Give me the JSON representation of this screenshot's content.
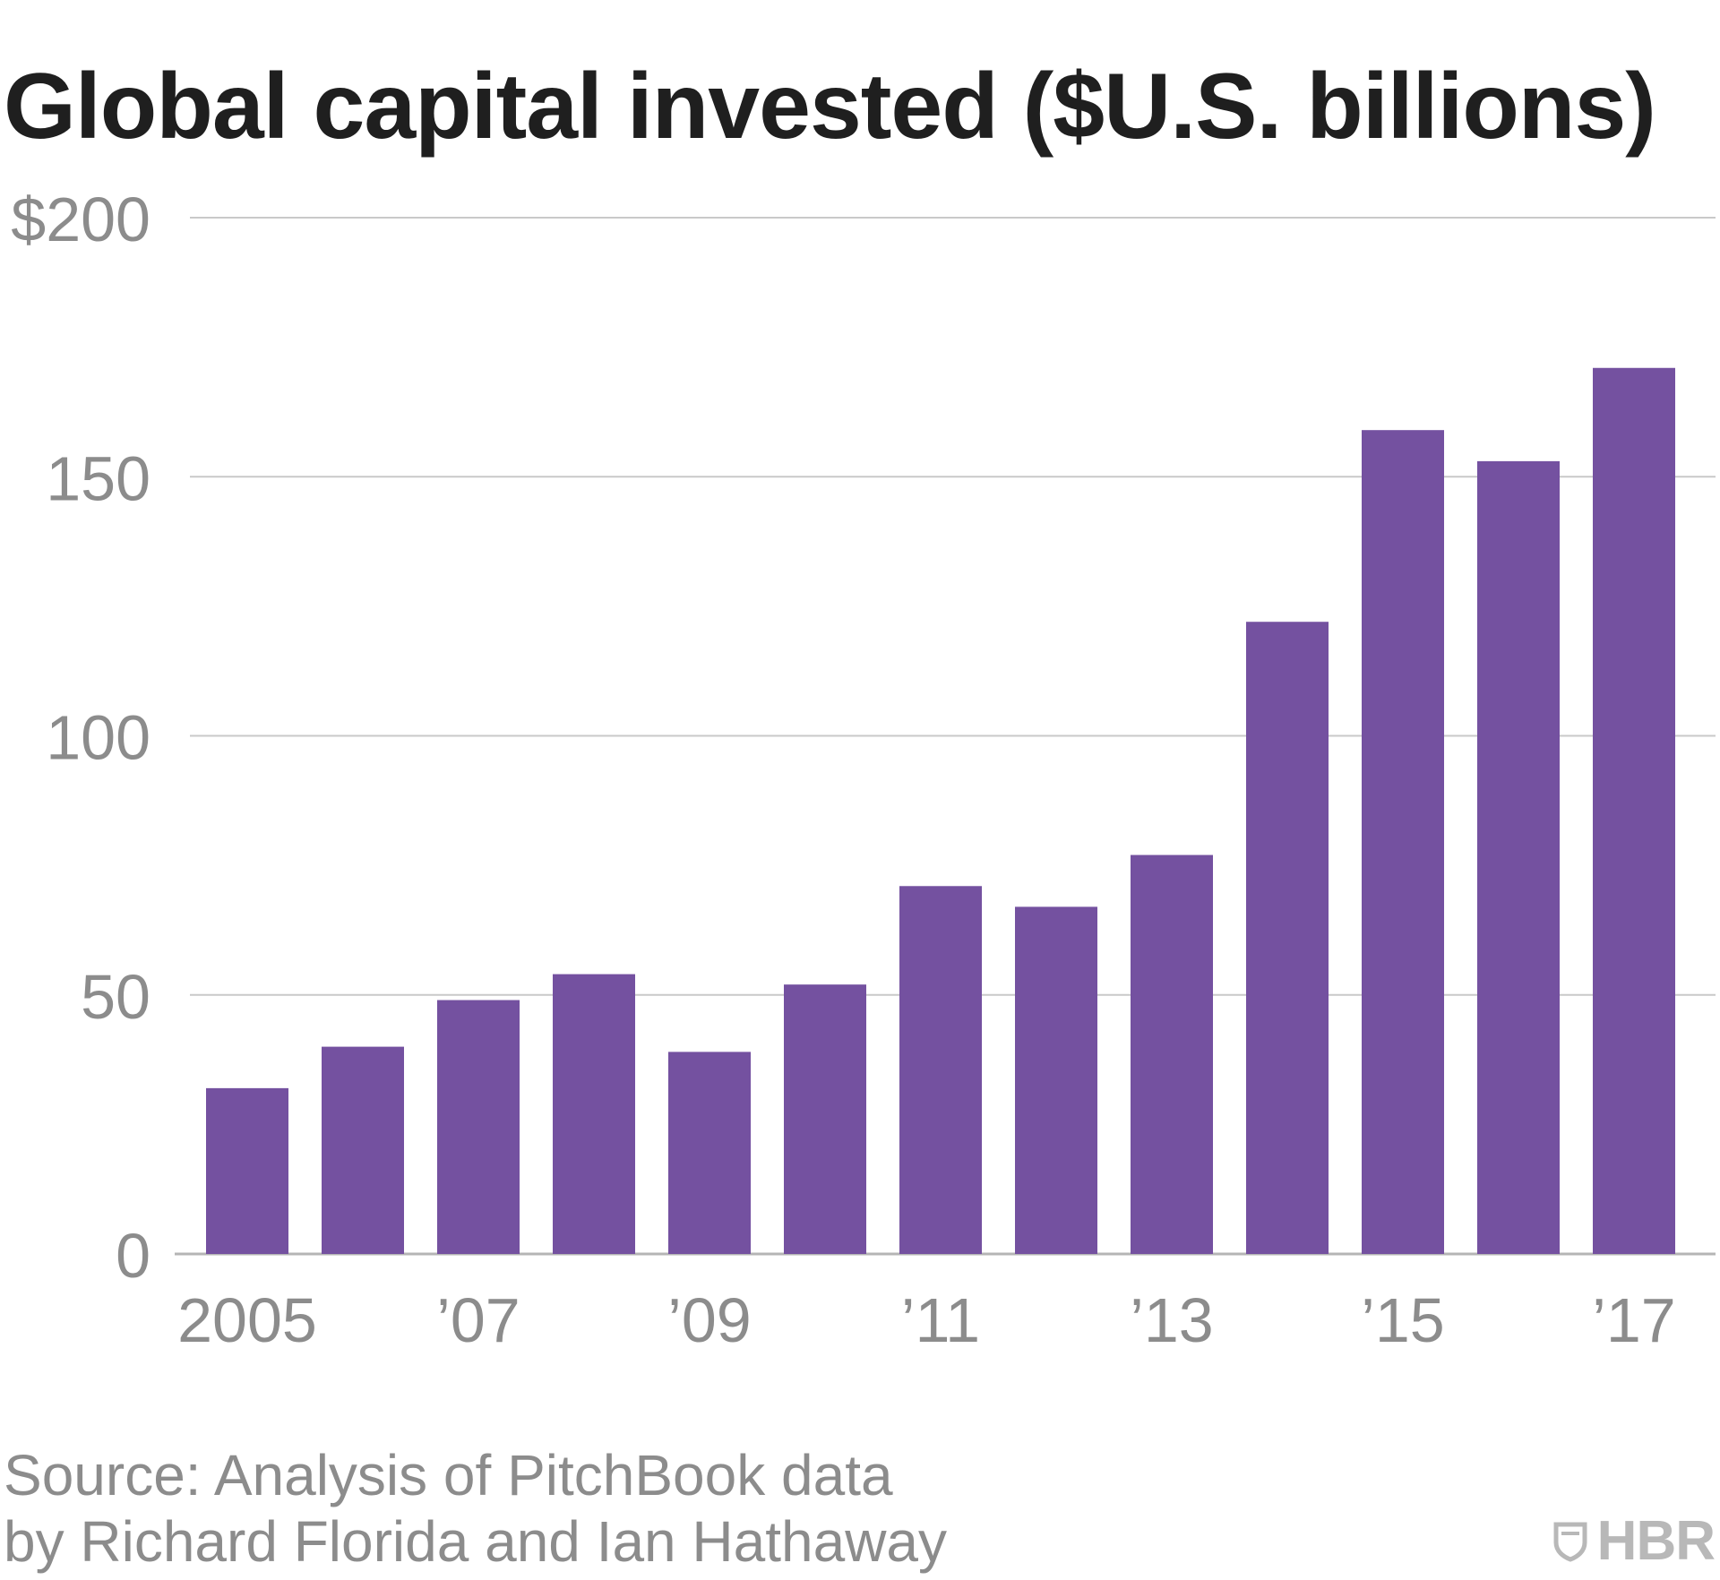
{
  "chart_data": {
    "type": "bar",
    "title": "Global capital invested ($U.S. billions)",
    "categories": [
      "2005",
      "2006",
      "2007",
      "2008",
      "2009",
      "2010",
      "2011",
      "2012",
      "2013",
      "2014",
      "2015",
      "2016",
      "2017"
    ],
    "values": [
      32,
      40,
      49,
      54,
      39,
      52,
      71,
      67,
      77,
      122,
      159,
      153,
      171
    ],
    "x_tick_labels": [
      "2005",
      "",
      "’07",
      "",
      "’09",
      "",
      "’11",
      "",
      "’13",
      "",
      "’15",
      "",
      "’17"
    ],
    "y_ticks": [
      0,
      50,
      100,
      150,
      200
    ],
    "y_tick_labels": [
      "0",
      "50",
      "100",
      "150",
      "$200"
    ],
    "ylim": [
      0,
      200
    ],
    "xlabel": "",
    "ylabel": "",
    "bar_color": "#7451a0",
    "grid": true
  },
  "source": {
    "line1": "Source: Analysis of PitchBook data",
    "line2": "by Richard Florida and Ian Hathaway"
  },
  "brand": {
    "text": "HBR",
    "icon": "hbr-shield-icon"
  }
}
